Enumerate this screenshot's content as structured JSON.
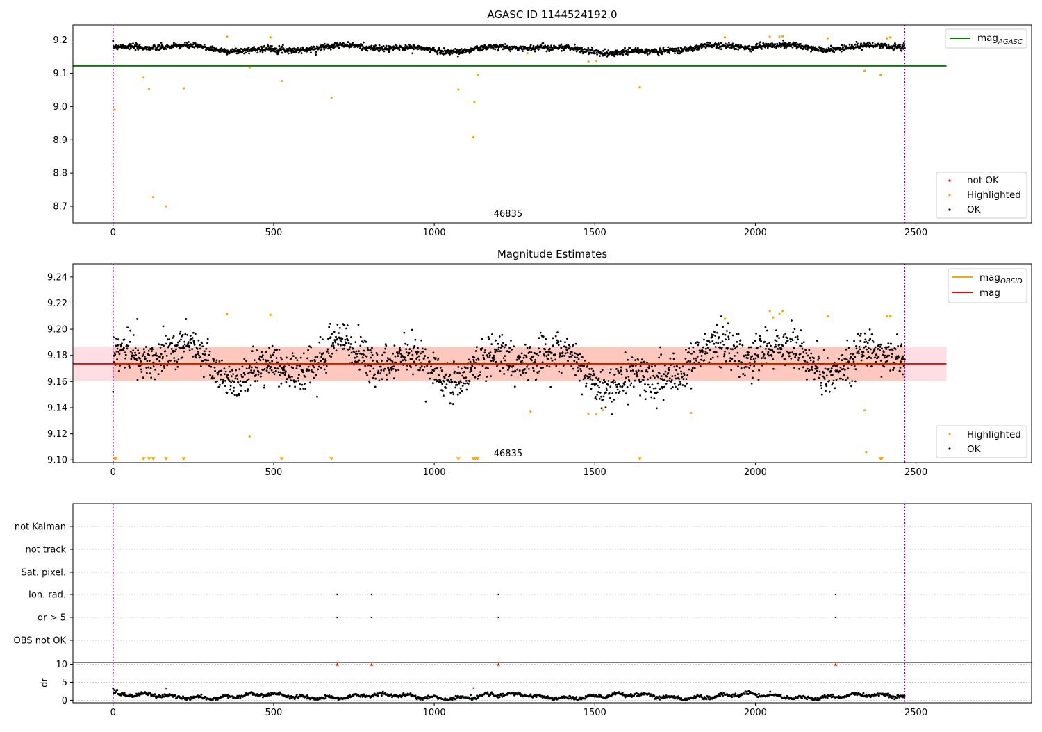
{
  "chart_data": [
    {
      "type": "scatter",
      "title": "AGASC ID 1144524192.0",
      "xlim": [
        -125,
        2860
      ],
      "ylim": [
        8.65,
        9.245
      ],
      "xticks": [
        0,
        500,
        1000,
        1500,
        2000,
        2500
      ],
      "yticks": [
        8.7,
        8.8,
        8.9,
        9.0,
        9.1,
        9.2
      ],
      "ytick_labels": [
        "8.7",
        "8.8",
        "8.9",
        "9.0",
        "9.1",
        "9.2"
      ],
      "grid": false,
      "annotation": "46835",
      "annotation_x": 1230,
      "vlines": [
        0,
        2465
      ],
      "hline": {
        "name": "mag_AGASC",
        "label_main": "mag",
        "label_sub": "AGASC",
        "y": 9.122,
        "x": [
          -125,
          2595
        ],
        "color": "#008000"
      },
      "band": {
        "center": 9.175,
        "amp": 0.011,
        "noise": 0.008
      },
      "legend_top": {
        "position": "top-right",
        "entries": [
          {
            "label_main": "mag",
            "label_sub": "AGASC",
            "color": "#008000"
          }
        ]
      },
      "legend_bottom": {
        "position": "bottom-right",
        "entries": [
          {
            "label": "not OK",
            "color": "#ff0000"
          },
          {
            "label": "Highlighted",
            "color": "#ffa500"
          },
          {
            "label": "OK",
            "color": "#000000"
          }
        ]
      },
      "highlighted": [
        [
          5,
          8.99
        ],
        [
          95,
          9.087
        ],
        [
          112,
          9.053
        ],
        [
          125,
          8.728
        ],
        [
          165,
          8.7
        ],
        [
          220,
          9.055
        ],
        [
          355,
          9.21
        ],
        [
          425,
          9.117
        ],
        [
          490,
          9.208
        ],
        [
          525,
          9.077
        ],
        [
          680,
          9.027
        ],
        [
          1075,
          9.051
        ],
        [
          1122,
          8.908
        ],
        [
          1125,
          9.013
        ],
        [
          1135,
          9.095
        ],
        [
          1290,
          9.16
        ],
        [
          1480,
          9.135
        ],
        [
          1505,
          9.137
        ],
        [
          1640,
          9.058
        ],
        [
          1905,
          9.208
        ],
        [
          2045,
          9.21
        ],
        [
          2075,
          9.21
        ],
        [
          2085,
          9.211
        ],
        [
          2225,
          9.205
        ],
        [
          2340,
          9.107
        ],
        [
          2390,
          9.095
        ],
        [
          2410,
          9.205
        ],
        [
          2420,
          9.208
        ]
      ]
    },
    {
      "type": "scatter",
      "title": "Magnitude Estimates",
      "xlim": [
        -125,
        2860
      ],
      "ylim": [
        9.098,
        9.25
      ],
      "xticks": [
        0,
        500,
        1000,
        1500,
        2000,
        2500
      ],
      "yticks": [
        9.1,
        9.12,
        9.14,
        9.16,
        9.18,
        9.2,
        9.22,
        9.24
      ],
      "ytick_labels": [
        "9.10",
        "9.12",
        "9.14",
        "9.16",
        "9.18",
        "9.20",
        "9.22",
        "9.24"
      ],
      "grid": false,
      "annotation": "46835",
      "annotation_x": 1230,
      "vlines": [
        0,
        2465
      ],
      "mag_line": {
        "name": "mag",
        "y": 9.1735,
        "x": [
          -125,
          2595
        ],
        "color": "#ff0000"
      },
      "obsid_band": {
        "y0": 9.1605,
        "y1": 9.1865,
        "x": [
          -125,
          2595
        ],
        "color": "#ffa07a"
      },
      "mag_band": {
        "y0": 9.1605,
        "y1": 9.1865,
        "x": [
          -125,
          2595
        ],
        "color": "#ffb6c1"
      },
      "band": {
        "center": 9.175,
        "amp": 0.011,
        "noise": 0.008
      },
      "legend_top": {
        "position": "top-right",
        "entries": [
          {
            "label_main": "mag",
            "label_sub": "OBSID",
            "color": "#ffa500"
          },
          {
            "label_main": "mag",
            "label_sub": "",
            "color": "#ff0000"
          }
        ]
      },
      "legend_bottom": {
        "position": "bottom-right",
        "entries": [
          {
            "label": "Highlighted",
            "color": "#ffa500"
          },
          {
            "label": "OK",
            "color": "#000000"
          }
        ]
      },
      "highlighted": [
        [
          355,
          9.212
        ],
        [
          425,
          9.118
        ],
        [
          490,
          9.211
        ],
        [
          1300,
          9.137
        ],
        [
          1480,
          9.135
        ],
        [
          1505,
          9.135
        ],
        [
          1525,
          9.138
        ],
        [
          1800,
          9.136
        ],
        [
          1905,
          9.208
        ],
        [
          2045,
          9.214
        ],
        [
          2055,
          9.209
        ],
        [
          2075,
          9.212
        ],
        [
          2085,
          9.214
        ],
        [
          2225,
          9.21
        ],
        [
          2340,
          9.138
        ],
        [
          2345,
          9.106
        ],
        [
          2410,
          9.21
        ],
        [
          2420,
          9.21
        ]
      ],
      "triangles": [
        5,
        8,
        95,
        112,
        125,
        165,
        220,
        525,
        680,
        1075,
        1122,
        1128,
        1135,
        1640,
        2390,
        2393
      ]
    },
    {
      "type": "scatter",
      "title": "",
      "xlim": [
        -125,
        2860
      ],
      "xticks": [
        0,
        500,
        1000,
        1500,
        2000,
        2500
      ],
      "vlines": [
        0,
        2465
      ],
      "flag_rows": [
        "not Kalman",
        "not track",
        "Sat. pixel.",
        "Ion. rad.",
        "dr > 5",
        "OBS not OK"
      ],
      "flag_events": [
        {
          "row": "Ion. rad.",
          "x": [
            698,
            805,
            1200,
            2250
          ]
        },
        {
          "row": "dr > 5",
          "x": [
            698,
            805,
            1200,
            2250
          ]
        }
      ],
      "dr": {
        "ylabel": "dr",
        "ylim": [
          -0.7,
          10.5
        ],
        "yticks": [
          0,
          5,
          10
        ],
        "ytick_labels": [
          "0",
          "5",
          "10"
        ],
        "clipped_points": [
          [
            698,
            10
          ],
          [
            805,
            10
          ],
          [
            1200,
            10
          ],
          [
            2250,
            10
          ]
        ],
        "outliers": [
          [
            165,
            3.3
          ],
          [
            1122,
            3.4
          ]
        ],
        "typical_range": [
          0.3,
          2.2
        ]
      }
    }
  ]
}
